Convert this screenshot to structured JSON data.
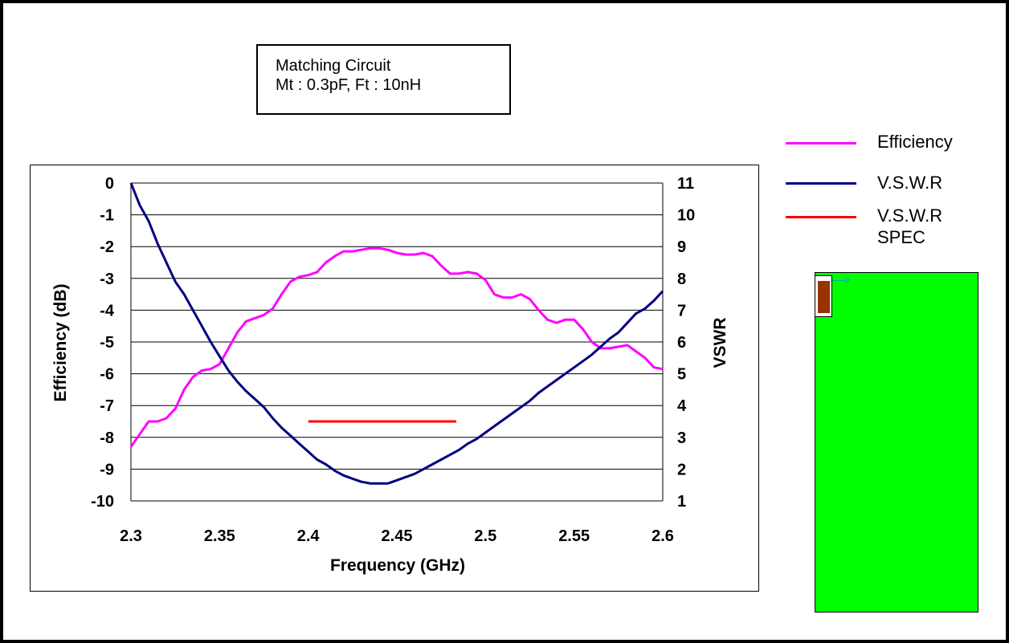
{
  "info_box": {
    "line1": "Matching Circuit",
    "line2": "Mt : 0.3pF, Ft : 10nH"
  },
  "legend": [
    {
      "label": "Efficiency",
      "color": "#ff00ff"
    },
    {
      "label": "V.S.W.R",
      "color": "#000080"
    },
    {
      "label": "V.S.W.R\nSPEC",
      "color": "#ff0000"
    }
  ],
  "pcb": {
    "board_color": "#00ff00",
    "chip_color": "#993300"
  },
  "chart_data": {
    "type": "line",
    "title": "",
    "xlabel": "Frequency (GHz)",
    "ylabel": "Efficiency (dB)",
    "y2label": "VSWR",
    "xlim": [
      2.3,
      2.6
    ],
    "ylim": [
      -10,
      0
    ],
    "y2lim": [
      1,
      11
    ],
    "xticks": [
      "2.3",
      "2.35",
      "2.4",
      "2.45",
      "2.5",
      "2.55",
      "2.6"
    ],
    "yticks": [
      "0",
      "-1",
      "-2",
      "-3",
      "-4",
      "-5",
      "-6",
      "-7",
      "-8",
      "-9",
      "-10"
    ],
    "y2ticks": [
      "11",
      "10",
      "9",
      "8",
      "7",
      "6",
      "5",
      "4",
      "3",
      "2",
      "1"
    ],
    "grid": "horizontal",
    "legend_position": "right",
    "series": [
      {
        "name": "Efficiency",
        "axis": "left",
        "color": "#ff00ff",
        "x": [
          2.3,
          2.305,
          2.31,
          2.315,
          2.32,
          2.325,
          2.33,
          2.335,
          2.34,
          2.345,
          2.35,
          2.355,
          2.36,
          2.365,
          2.37,
          2.375,
          2.38,
          2.385,
          2.39,
          2.395,
          2.4,
          2.405,
          2.41,
          2.415,
          2.42,
          2.425,
          2.43,
          2.435,
          2.44,
          2.445,
          2.45,
          2.455,
          2.46,
          2.465,
          2.47,
          2.475,
          2.48,
          2.485,
          2.49,
          2.495,
          2.5,
          2.505,
          2.51,
          2.515,
          2.52,
          2.525,
          2.53,
          2.535,
          2.54,
          2.545,
          2.55,
          2.555,
          2.56,
          2.565,
          2.57,
          2.575,
          2.58,
          2.585,
          2.59,
          2.595,
          2.6
        ],
        "values": [
          -8.3,
          -7.9,
          -7.5,
          -7.5,
          -7.4,
          -7.1,
          -6.5,
          -6.1,
          -5.9,
          -5.85,
          -5.7,
          -5.2,
          -4.7,
          -4.35,
          -4.25,
          -4.15,
          -3.95,
          -3.5,
          -3.1,
          -2.95,
          -2.9,
          -2.8,
          -2.5,
          -2.3,
          -2.15,
          -2.15,
          -2.1,
          -2.05,
          -2.05,
          -2.1,
          -2.2,
          -2.25,
          -2.25,
          -2.2,
          -2.3,
          -2.6,
          -2.85,
          -2.85,
          -2.8,
          -2.85,
          -3.05,
          -3.5,
          -3.6,
          -3.6,
          -3.5,
          -3.65,
          -4.0,
          -4.3,
          -4.4,
          -4.3,
          -4.3,
          -4.6,
          -5.0,
          -5.2,
          -5.2,
          -5.15,
          -5.1,
          -5.3,
          -5.5,
          -5.8,
          -5.85
        ]
      },
      {
        "name": "V.S.W.R",
        "axis": "right",
        "color": "#000080",
        "x": [
          2.3,
          2.305,
          2.31,
          2.315,
          2.32,
          2.325,
          2.33,
          2.335,
          2.34,
          2.345,
          2.35,
          2.355,
          2.36,
          2.365,
          2.37,
          2.375,
          2.38,
          2.385,
          2.39,
          2.395,
          2.4,
          2.405,
          2.41,
          2.415,
          2.42,
          2.425,
          2.43,
          2.435,
          2.44,
          2.445,
          2.45,
          2.455,
          2.46,
          2.465,
          2.47,
          2.475,
          2.48,
          2.485,
          2.49,
          2.495,
          2.5,
          2.505,
          2.51,
          2.515,
          2.52,
          2.525,
          2.53,
          2.535,
          2.54,
          2.545,
          2.55,
          2.555,
          2.56,
          2.565,
          2.57,
          2.575,
          2.58,
          2.585,
          2.59,
          2.595,
          2.6
        ],
        "values": [
          11.0,
          10.3,
          9.8,
          9.1,
          8.5,
          7.9,
          7.5,
          7.0,
          6.5,
          6.0,
          5.55,
          5.1,
          4.75,
          4.45,
          4.2,
          3.95,
          3.6,
          3.3,
          3.05,
          2.8,
          2.55,
          2.3,
          2.15,
          1.95,
          1.8,
          1.7,
          1.6,
          1.55,
          1.55,
          1.55,
          1.65,
          1.75,
          1.85,
          2.0,
          2.15,
          2.3,
          2.45,
          2.6,
          2.8,
          2.95,
          3.15,
          3.35,
          3.55,
          3.75,
          3.95,
          4.15,
          4.4,
          4.6,
          4.8,
          5.0,
          5.2,
          5.4,
          5.6,
          5.85,
          6.1,
          6.3,
          6.6,
          6.9,
          7.05,
          7.3,
          7.6
        ]
      },
      {
        "name": "V.S.W.R SPEC",
        "axis": "right",
        "color": "#ff0000",
        "x": [
          2.4,
          2.4835
        ],
        "values": [
          3.5,
          3.5
        ]
      }
    ]
  }
}
